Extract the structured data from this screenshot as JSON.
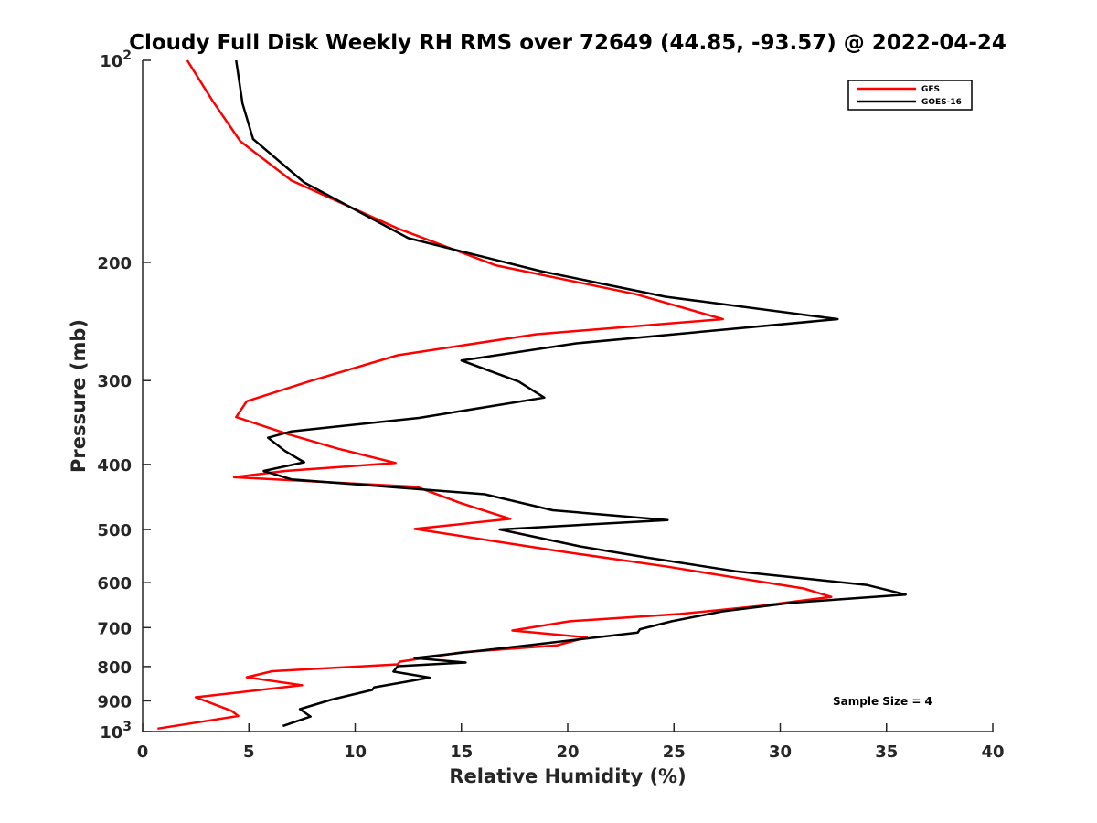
{
  "chart_data": {
    "type": "line",
    "title": "Cloudy Full Disk Weekly RH RMS over 72649 (44.85, -93.57) @ 2022-04-24",
    "xlabel": "Relative Humidity (%)",
    "ylabel": "Pressure (mb)",
    "xlim": [
      0,
      40
    ],
    "ylim": [
      100,
      1000
    ],
    "yscale": "log",
    "y_reversed": true,
    "grid": false,
    "legend_position": "top-right",
    "x_ticks": [
      "0",
      "5",
      "10",
      "15",
      "20",
      "25",
      "30",
      "35",
      "40"
    ],
    "y_ticks": [
      {
        "value": 100,
        "base": "10",
        "exp": "2"
      },
      {
        "value": 200,
        "label": "200"
      },
      {
        "value": 300,
        "label": "300"
      },
      {
        "value": 400,
        "label": "400"
      },
      {
        "value": 500,
        "label": "500"
      },
      {
        "value": 600,
        "label": "600"
      },
      {
        "value": 700,
        "label": "700"
      },
      {
        "value": 800,
        "label": "800"
      },
      {
        "value": 900,
        "label": "900"
      },
      {
        "value": 1000,
        "base": "10",
        "exp": "3"
      }
    ],
    "annotation": "Sample Size = 4",
    "series": [
      {
        "name": "GFS",
        "color": "#ff0000",
        "points": [
          [
            2.1,
            100
          ],
          [
            3.3,
            115
          ],
          [
            4.6,
            132
          ],
          [
            7.0,
            151
          ],
          [
            12.0,
            178
          ],
          [
            16.6,
            202
          ],
          [
            23.2,
            223
          ],
          [
            27.3,
            243
          ],
          [
            18.5,
            256
          ],
          [
            12.0,
            275
          ],
          [
            7.8,
            301
          ],
          [
            4.9,
            322
          ],
          [
            4.4,
            340
          ],
          [
            6.9,
            361
          ],
          [
            9.2,
            379
          ],
          [
            11.9,
            398
          ],
          [
            6.7,
            409
          ],
          [
            4.3,
            418
          ],
          [
            12.9,
            432
          ],
          [
            15.0,
            457
          ],
          [
            17.3,
            482
          ],
          [
            12.8,
            499
          ],
          [
            15.8,
            516
          ],
          [
            19.5,
            538
          ],
          [
            24.7,
            568
          ],
          [
            27.8,
            589
          ],
          [
            31.1,
            612
          ],
          [
            32.4,
            630
          ],
          [
            29.0,
            650
          ],
          [
            25.3,
            668
          ],
          [
            20.1,
            685
          ],
          [
            17.4,
            707
          ],
          [
            20.9,
            724
          ],
          [
            19.5,
            744
          ],
          [
            15.0,
            762
          ],
          [
            12.1,
            787
          ],
          [
            12.0,
            794
          ],
          [
            6.1,
            813
          ],
          [
            4.9,
            830
          ],
          [
            7.5,
            853
          ],
          [
            2.5,
            889
          ],
          [
            4.2,
            932
          ],
          [
            4.5,
            948
          ],
          [
            0.7,
            990
          ]
        ]
      },
      {
        "name": "GOES-16",
        "color": "#000000",
        "points": [
          [
            4.4,
            100
          ],
          [
            4.7,
            116
          ],
          [
            5.2,
            131
          ],
          [
            7.6,
            152
          ],
          [
            12.5,
            184
          ],
          [
            18.7,
            206
          ],
          [
            24.6,
            225
          ],
          [
            32.7,
            243
          ],
          [
            20.4,
            264
          ],
          [
            15.0,
            280
          ],
          [
            17.7,
            301
          ],
          [
            18.9,
            318
          ],
          [
            13.0,
            341
          ],
          [
            7.0,
            357
          ],
          [
            5.9,
            365
          ],
          [
            6.7,
            382
          ],
          [
            7.6,
            397
          ],
          [
            5.7,
            409
          ],
          [
            7.0,
            421
          ],
          [
            16.1,
            443
          ],
          [
            19.3,
            468
          ],
          [
            24.7,
            484
          ],
          [
            16.8,
            500
          ],
          [
            20.6,
            530
          ],
          [
            23.8,
            551
          ],
          [
            27.9,
            577
          ],
          [
            34.1,
            605
          ],
          [
            35.9,
            625
          ],
          [
            30.5,
            643
          ],
          [
            27.3,
            662
          ],
          [
            24.9,
            685
          ],
          [
            23.4,
            704
          ],
          [
            23.3,
            712
          ],
          [
            18.3,
            743
          ],
          [
            12.8,
            777
          ],
          [
            15.2,
            789
          ],
          [
            12.0,
            799
          ],
          [
            11.8,
            814
          ],
          [
            13.5,
            831
          ],
          [
            10.9,
            859
          ],
          [
            10.8,
            867
          ],
          [
            8.9,
            896
          ],
          [
            7.4,
            926
          ],
          [
            7.9,
            950
          ],
          [
            6.6,
            981
          ]
        ]
      }
    ]
  }
}
